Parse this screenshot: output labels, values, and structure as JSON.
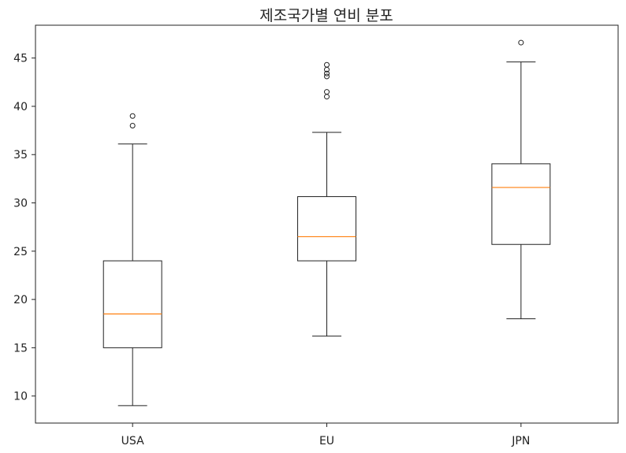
{
  "chart_data": {
    "type": "box",
    "title": "제조국가별 연비 분포",
    "xlabel": "",
    "ylabel": "",
    "ylim": [
      7.2,
      48.4
    ],
    "yticks": [
      10,
      15,
      20,
      25,
      30,
      35,
      40,
      45
    ],
    "grid": false,
    "categories": [
      "USA",
      "EU",
      "JPN"
    ],
    "boxes": [
      {
        "category": "USA",
        "whisker_low": 9.0,
        "q1": 15.0,
        "median": 18.5,
        "q3": 24.0,
        "whisker_high": 36.1,
        "outliers": [
          38.0,
          39.0
        ]
      },
      {
        "category": "EU",
        "whisker_low": 16.2,
        "q1": 24.0,
        "median": 26.5,
        "q3": 30.65,
        "whisker_high": 37.3,
        "outliers": [
          41.0,
          41.5,
          43.1,
          43.4,
          43.8,
          44.3
        ]
      },
      {
        "category": "JPN",
        "whisker_low": 18.0,
        "q1": 25.7,
        "median": 31.6,
        "q3": 34.05,
        "whisker_high": 44.6,
        "outliers": [
          46.6
        ]
      }
    ],
    "colors": {
      "box": "#222222",
      "median": "#ff7f0e",
      "axes": "#222222"
    }
  }
}
